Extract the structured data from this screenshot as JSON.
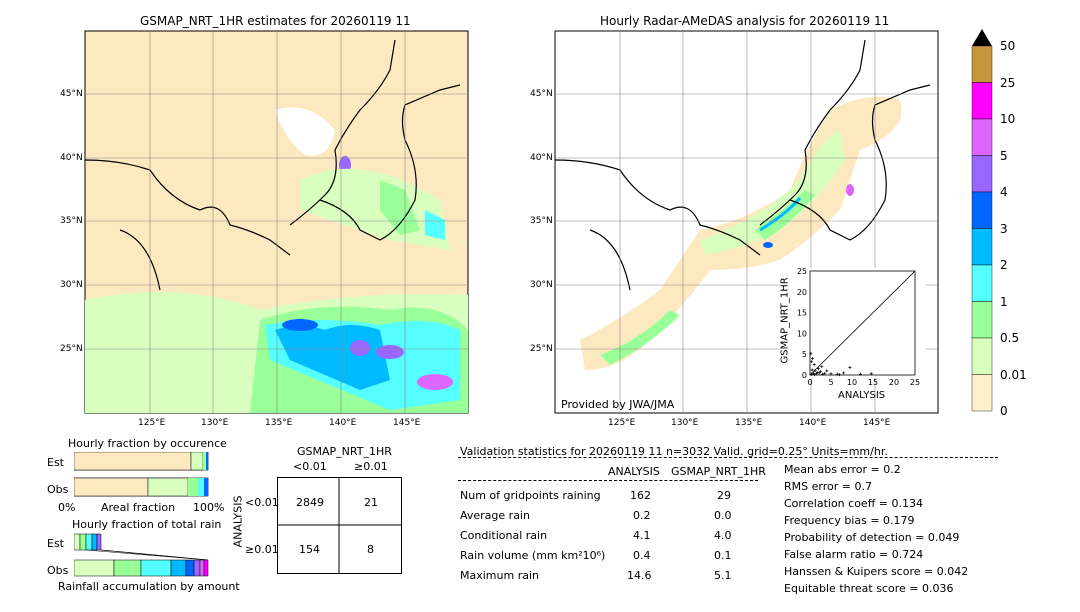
{
  "left_map": {
    "title": "GSMAP_NRT_1HR estimates for 20260119 11",
    "lat_labels": [
      "45°N",
      "40°N",
      "35°N",
      "30°N",
      "25°N"
    ],
    "lon_labels": [
      "125°E",
      "130°E",
      "135°E",
      "140°E",
      "145°E"
    ]
  },
  "right_map": {
    "title": "Hourly Radar-AMeDAS analysis for 20260119 11",
    "lat_labels": [
      "45°N",
      "40°N",
      "35°N",
      "30°N",
      "25°N"
    ],
    "lon_labels": [
      "125°E",
      "130°E",
      "135°E",
      "140°E",
      "145°E"
    ],
    "credit": "Provided by JWA/JMA",
    "inset": {
      "ylabel": "GSMAP_NRT_1HR",
      "xlabel": "ANALYSIS",
      "ticks": [
        "0",
        "5",
        "10",
        "15",
        "20",
        "25"
      ]
    }
  },
  "colorbar": {
    "labels": [
      "50",
      "25",
      "10",
      "5",
      "4",
      "3",
      "2",
      "1",
      "0.5",
      "0.01",
      "0"
    ],
    "colors": [
      "#c8963c",
      "#ff00ff",
      "#dd66ff",
      "#9966ff",
      "#0066ff",
      "#00bbff",
      "#55ffff",
      "#99ff99",
      "#d9ffbf",
      "#fff0cc"
    ]
  },
  "fraction_occurrence": {
    "title": "Hourly fraction by occurence",
    "rows": [
      "Est",
      "Obs"
    ],
    "axis_left": "0%",
    "axis_mid": "Areal fraction",
    "axis_right": "100%"
  },
  "fraction_total": {
    "title": "Hourly fraction of total rain",
    "rows": [
      "Est",
      "Obs"
    ],
    "axis_label": "Rainfall accumulation by amount"
  },
  "contingency": {
    "title": "GSMAP_NRT_1HR",
    "col_headers": [
      "<0.01",
      "≥0.01"
    ],
    "row_label": "ANALYSIS",
    "row_headers": [
      "<0.01",
      "≥0.01"
    ],
    "cells": [
      [
        "2849",
        "21"
      ],
      [
        "154",
        "8"
      ]
    ]
  },
  "validation": {
    "header": "Validation statistics for 20260119 11  n=3032 Valid. grid=0.25° Units=mm/hr.",
    "col_analysis": "ANALYSIS",
    "col_gsmap": "GSMAP_NRT_1HR",
    "rows": [
      {
        "label": "Num of gridpoints raining",
        "analysis": "162",
        "gsmap": "29"
      },
      {
        "label": "Average rain",
        "analysis": "0.2",
        "gsmap": "0.0"
      },
      {
        "label": "Conditional rain",
        "analysis": "4.1",
        "gsmap": "4.0"
      },
      {
        "label": "Rain volume (mm km²10⁶)",
        "analysis": "0.4",
        "gsmap": "0.1"
      },
      {
        "label": "Maximum rain",
        "analysis": "14.6",
        "gsmap": "5.1"
      }
    ],
    "scores": [
      "Mean abs error =    0.2",
      "RMS error =    0.7",
      "Correlation coeff =  0.134",
      "Frequency bias =  0.179",
      "Probability of detection =  0.049",
      "False alarm ratio =  0.724",
      "Hanssen & Kuipers score =  0.042",
      "Equitable threat score =  0.036"
    ]
  },
  "chart_data": {
    "type": "scatter",
    "xlabel": "ANALYSIS",
    "ylabel": "GSMAP_NRT_1HR",
    "xlim": [
      0,
      25
    ],
    "ylim": [
      0,
      25
    ],
    "points": [
      [
        0.3,
        0.2
      ],
      [
        0.5,
        1.2
      ],
      [
        0.8,
        0.4
      ],
      [
        1.0,
        2.5
      ],
      [
        1.2,
        1.0
      ],
      [
        1.5,
        0.3
      ],
      [
        1.8,
        0.6
      ],
      [
        2.0,
        1.5
      ],
      [
        2.5,
        0.8
      ],
      [
        3.0,
        0.2
      ],
      [
        0.4,
        3.2
      ],
      [
        0.6,
        4.0
      ],
      [
        1.1,
        0.1
      ],
      [
        2.2,
        0.5
      ],
      [
        3.5,
        0.4
      ],
      [
        4.0,
        1.0
      ],
      [
        5.0,
        0.3
      ],
      [
        6.5,
        0.2
      ],
      [
        8.0,
        0.5
      ],
      [
        9.5,
        1.8
      ],
      [
        12.0,
        0.2
      ],
      [
        14.6,
        0.3
      ],
      [
        7.0,
        0.1
      ],
      [
        0.2,
        5.1
      ],
      [
        2.8,
        2.0
      ]
    ]
  }
}
